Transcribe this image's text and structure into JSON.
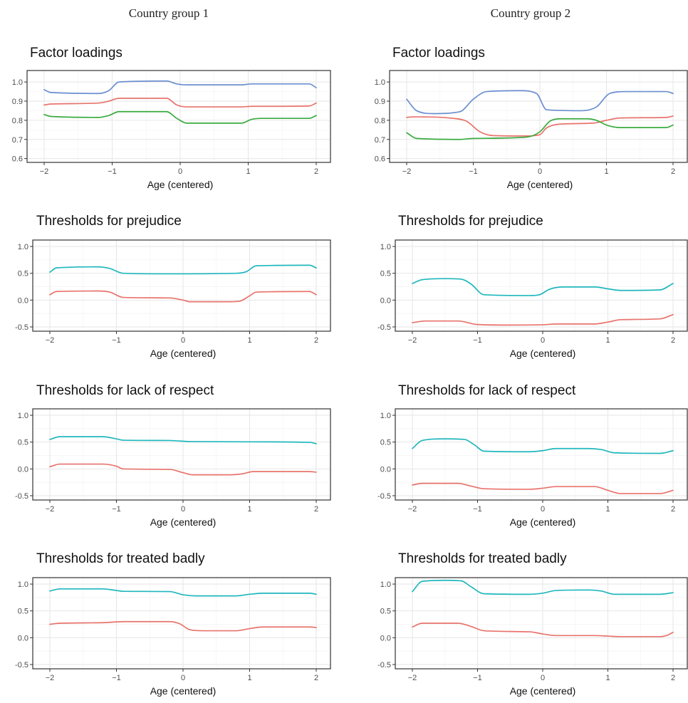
{
  "columns": [
    "Country group 1",
    "Country group 2"
  ],
  "chart_data": [
    {
      "type": "line",
      "group": "Country group 1",
      "title": "Factor loadings",
      "xlabel": "Age (centered)",
      "ylabel": "",
      "xlim": [
        -2,
        2
      ],
      "ylim": [
        0.58,
        1.06
      ],
      "xticks": [
        -2,
        -1,
        0,
        1,
        2
      ],
      "xtick_labels": [
        "−2",
        "−1",
        "0",
        "1",
        "2"
      ],
      "yticks": [
        0.6,
        0.7,
        0.8,
        0.9,
        1.0
      ],
      "ytick_labels": [
        "0.6",
        "0.7",
        "0.8",
        "0.9",
        "1.0"
      ],
      "grid": true,
      "legend": "none",
      "series": [
        {
          "color": "#6b8fd0",
          "x": [
            -2,
            -1.9,
            -1.2,
            -1.05,
            -0.9,
            -0.2,
            -0.05,
            0.1,
            0.9,
            1.05,
            1.2,
            1.9,
            2
          ],
          "y": [
            0.96,
            0.945,
            0.94,
            0.955,
            1.0,
            1.005,
            0.99,
            0.985,
            0.985,
            0.99,
            0.99,
            0.99,
            0.97
          ]
        },
        {
          "color": "#e8736c",
          "x": [
            -2,
            -1.9,
            -1.2,
            -1.05,
            -0.9,
            -0.2,
            -0.05,
            0.1,
            0.9,
            1.05,
            1.2,
            1.9,
            2
          ],
          "y": [
            0.88,
            0.885,
            0.89,
            0.9,
            0.915,
            0.915,
            0.88,
            0.87,
            0.87,
            0.873,
            0.873,
            0.875,
            0.89
          ]
        },
        {
          "color": "#3aab3f",
          "x": [
            -2,
            -1.9,
            -1.2,
            -1.05,
            -0.9,
            -0.2,
            -0.05,
            0.1,
            0.9,
            1.05,
            1.2,
            1.9,
            2
          ],
          "y": [
            0.83,
            0.82,
            0.815,
            0.825,
            0.845,
            0.845,
            0.81,
            0.785,
            0.785,
            0.805,
            0.81,
            0.81,
            0.825
          ]
        }
      ]
    },
    {
      "type": "line",
      "group": "Country group 2",
      "title": "Factor loadings",
      "xlabel": "Age (centered)",
      "ylabel": "",
      "xlim": [
        -2,
        2
      ],
      "ylim": [
        0.58,
        1.06
      ],
      "xticks": [
        -2,
        -1,
        0,
        1,
        2
      ],
      "xtick_labels": [
        "−2",
        "−1",
        "0",
        "1",
        "2"
      ],
      "yticks": [
        0.6,
        0.7,
        0.8,
        0.9,
        1.0
      ],
      "ytick_labels": [
        "0.6",
        "0.7",
        "0.8",
        "0.9",
        "1.0"
      ],
      "grid": true,
      "legend": "none",
      "series": [
        {
          "color": "#6b8fd0",
          "x": [
            -2,
            -1.85,
            -1.6,
            -1.2,
            -1.0,
            -0.8,
            -0.3,
            -0.05,
            0.1,
            0.6,
            0.85,
            1.05,
            1.3,
            1.9,
            2
          ],
          "y": [
            0.91,
            0.85,
            0.835,
            0.845,
            0.91,
            0.95,
            0.955,
            0.94,
            0.855,
            0.85,
            0.87,
            0.94,
            0.95,
            0.95,
            0.94
          ]
        },
        {
          "color": "#e8736c",
          "x": [
            -2,
            -1.9,
            -1.3,
            -1.1,
            -0.9,
            -0.7,
            -0.2,
            0.0,
            0.1,
            0.3,
            0.8,
            1.0,
            1.2,
            1.9,
            2
          ],
          "y": [
            0.815,
            0.818,
            0.81,
            0.795,
            0.74,
            0.72,
            0.718,
            0.725,
            0.76,
            0.78,
            0.785,
            0.8,
            0.812,
            0.815,
            0.822
          ]
        },
        {
          "color": "#3aab3f",
          "x": [
            -2,
            -1.85,
            -1.2,
            -1.0,
            -0.2,
            0.0,
            0.15,
            0.3,
            0.7,
            0.85,
            1.0,
            1.2,
            1.9,
            2
          ],
          "y": [
            0.735,
            0.705,
            0.7,
            0.705,
            0.712,
            0.74,
            0.795,
            0.808,
            0.808,
            0.8,
            0.775,
            0.762,
            0.762,
            0.775
          ]
        }
      ]
    },
    {
      "type": "line",
      "group": "Country group 1",
      "title": "Thresholds for prejudice",
      "xlabel": "Age (centered)",
      "ylabel": "",
      "xlim": [
        -2,
        2
      ],
      "ylim": [
        -0.58,
        1.12
      ],
      "xticks": [
        -2,
        -1,
        0,
        1,
        2
      ],
      "xtick_labels": [
        "−2",
        "−1",
        "0",
        "1",
        "2"
      ],
      "yticks": [
        -0.5,
        0.0,
        0.5,
        1.0
      ],
      "ytick_labels": [
        "-0.5",
        "0.0",
        "0.5",
        "1.0"
      ],
      "grid": true,
      "legend": "none",
      "series": [
        {
          "color": "#20b7bd",
          "x": [
            -2,
            -1.9,
            -1.3,
            -1.1,
            -0.9,
            -0.2,
            0.8,
            0.95,
            1.1,
            1.9,
            2
          ],
          "y": [
            0.52,
            0.6,
            0.62,
            0.59,
            0.5,
            0.49,
            0.5,
            0.53,
            0.64,
            0.65,
            0.6
          ]
        },
        {
          "color": "#e8736c",
          "x": [
            -2,
            -1.9,
            -1.3,
            -1.1,
            -0.9,
            -0.2,
            0.0,
            0.1,
            0.7,
            0.85,
            1.0,
            1.1,
            1.9,
            2
          ],
          "y": [
            0.1,
            0.16,
            0.17,
            0.15,
            0.05,
            0.04,
            0.0,
            -0.03,
            -0.03,
            -0.02,
            0.08,
            0.15,
            0.16,
            0.1
          ]
        }
      ]
    },
    {
      "type": "line",
      "group": "Country group 2",
      "title": "Thresholds for prejudice",
      "xlabel": "Age (centered)",
      "ylabel": "",
      "xlim": [
        -2,
        2
      ],
      "ylim": [
        -0.58,
        1.12
      ],
      "xticks": [
        -2,
        -1,
        0,
        1,
        2
      ],
      "xtick_labels": [
        "−2",
        "−1",
        "0",
        "1",
        "2"
      ],
      "yticks": [
        -0.5,
        0.0,
        0.5,
        1.0
      ],
      "ytick_labels": [
        "-0.5",
        "0.0",
        "0.5",
        "1.0"
      ],
      "grid": true,
      "legend": "none",
      "series": [
        {
          "color": "#20b7bd",
          "x": [
            -2,
            -1.85,
            -1.5,
            -1.25,
            -1.1,
            -0.9,
            -0.2,
            -0.05,
            0.1,
            0.3,
            0.8,
            1.0,
            1.2,
            1.8,
            2
          ],
          "y": [
            0.31,
            0.38,
            0.4,
            0.39,
            0.3,
            0.1,
            0.085,
            0.1,
            0.2,
            0.245,
            0.245,
            0.21,
            0.18,
            0.19,
            0.31
          ]
        },
        {
          "color": "#e8736c",
          "x": [
            -2,
            -1.8,
            -1.3,
            -1.0,
            -0.5,
            0.0,
            0.2,
            0.8,
            1.0,
            1.2,
            1.8,
            2
          ],
          "y": [
            -0.42,
            -0.39,
            -0.39,
            -0.455,
            -0.465,
            -0.46,
            -0.445,
            -0.445,
            -0.41,
            -0.365,
            -0.35,
            -0.27
          ]
        }
      ]
    },
    {
      "type": "line",
      "group": "Country group 1",
      "title": "Thresholds for lack of respect",
      "xlabel": "Age (centered)",
      "ylabel": "",
      "xlim": [
        -2,
        2
      ],
      "ylim": [
        -0.58,
        1.12
      ],
      "xticks": [
        -2,
        -1,
        0,
        1,
        2
      ],
      "xtick_labels": [
        "−2",
        "−1",
        "0",
        "1",
        "2"
      ],
      "yticks": [
        -0.5,
        0.0,
        0.5,
        1.0
      ],
      "ytick_labels": [
        "-0.5",
        "0.0",
        "0.5",
        "1.0"
      ],
      "grid": true,
      "legend": "none",
      "series": [
        {
          "color": "#20b7bd",
          "x": [
            -2,
            -1.85,
            -1.2,
            -1.0,
            -0.9,
            -0.2,
            0.1,
            1.0,
            1.9,
            2
          ],
          "y": [
            0.55,
            0.6,
            0.6,
            0.56,
            0.535,
            0.53,
            0.51,
            0.505,
            0.495,
            0.47
          ]
        },
        {
          "color": "#e8736c",
          "x": [
            -2,
            -1.85,
            -1.2,
            -1.0,
            -0.9,
            -0.2,
            0.0,
            0.15,
            0.7,
            0.9,
            1.05,
            1.9,
            2
          ],
          "y": [
            0.04,
            0.09,
            0.09,
            0.05,
            0.0,
            -0.01,
            -0.07,
            -0.11,
            -0.11,
            -0.09,
            -0.05,
            -0.05,
            -0.06
          ]
        }
      ]
    },
    {
      "type": "line",
      "group": "Country group 2",
      "title": "Thresholds for lack of respect",
      "xlabel": "Age (centered)",
      "ylabel": "",
      "xlim": [
        -2,
        2
      ],
      "ylim": [
        -0.58,
        1.12
      ],
      "xticks": [
        -2,
        -1,
        0,
        1,
        2
      ],
      "xtick_labels": [
        "−2",
        "−1",
        "0",
        "1",
        "2"
      ],
      "yticks": [
        -0.5,
        0.0,
        0.5,
        1.0
      ],
      "ytick_labels": [
        "-0.5",
        "0.0",
        "0.5",
        "1.0"
      ],
      "grid": true,
      "legend": "none",
      "series": [
        {
          "color": "#20b7bd",
          "x": [
            -2,
            -1.85,
            -1.5,
            -1.2,
            -1.05,
            -0.9,
            -0.2,
            0.0,
            0.2,
            0.7,
            0.9,
            1.1,
            1.8,
            2
          ],
          "y": [
            0.38,
            0.53,
            0.56,
            0.55,
            0.45,
            0.33,
            0.32,
            0.34,
            0.38,
            0.38,
            0.36,
            0.3,
            0.29,
            0.34
          ]
        },
        {
          "color": "#e8736c",
          "x": [
            -2,
            -1.85,
            -1.3,
            -1.1,
            -0.9,
            -0.2,
            0.0,
            0.2,
            0.8,
            1.0,
            1.2,
            1.8,
            2
          ],
          "y": [
            -0.3,
            -0.27,
            -0.27,
            -0.32,
            -0.37,
            -0.38,
            -0.36,
            -0.33,
            -0.33,
            -0.4,
            -0.46,
            -0.46,
            -0.4
          ]
        }
      ]
    },
    {
      "type": "line",
      "group": "Country group 1",
      "title": "Thresholds for treated badly",
      "xlabel": "Age (centered)",
      "ylabel": "",
      "xlim": [
        -2,
        2
      ],
      "ylim": [
        -0.58,
        1.12
      ],
      "xticks": [
        -2,
        -1,
        0,
        1,
        2
      ],
      "xtick_labels": [
        "−2",
        "−1",
        "0",
        "1",
        "2"
      ],
      "yticks": [
        -0.5,
        0.0,
        0.5,
        1.0
      ],
      "ytick_labels": [
        "-0.5",
        "0.0",
        "0.5",
        "1.0"
      ],
      "grid": true,
      "legend": "none",
      "series": [
        {
          "color": "#20b7bd",
          "x": [
            -2,
            -1.85,
            -1.2,
            -1.0,
            -0.9,
            -0.2,
            0.0,
            0.2,
            0.8,
            1.0,
            1.2,
            1.9,
            2
          ],
          "y": [
            0.87,
            0.91,
            0.91,
            0.88,
            0.865,
            0.86,
            0.8,
            0.78,
            0.78,
            0.81,
            0.83,
            0.83,
            0.81
          ]
        },
        {
          "color": "#e8736c",
          "x": [
            -2,
            -1.85,
            -1.2,
            -0.9,
            -0.2,
            -0.05,
            0.1,
            0.3,
            0.8,
            1.0,
            1.2,
            1.9,
            2
          ],
          "y": [
            0.25,
            0.27,
            0.28,
            0.3,
            0.3,
            0.26,
            0.15,
            0.13,
            0.13,
            0.17,
            0.2,
            0.2,
            0.19
          ]
        }
      ]
    },
    {
      "type": "line",
      "group": "Country group 2",
      "title": "Thresholds for treated badly",
      "xlabel": "Age (centered)",
      "ylabel": "",
      "xlim": [
        -2,
        2
      ],
      "ylim": [
        -0.58,
        1.12
      ],
      "xticks": [
        -2,
        -1,
        0,
        1,
        2
      ],
      "xtick_labels": [
        "−2",
        "−1",
        "0",
        "1",
        "2"
      ],
      "yticks": [
        -0.5,
        0.0,
        0.5,
        1.0
      ],
      "ytick_labels": [
        "-0.5",
        "0.0",
        "0.5",
        "1.0"
      ],
      "grid": true,
      "legend": "none",
      "series": [
        {
          "color": "#20b7bd",
          "x": [
            -2,
            -1.85,
            -1.5,
            -1.25,
            -1.1,
            -0.9,
            -0.2,
            0.0,
            0.2,
            0.7,
            0.9,
            1.1,
            1.8,
            2
          ],
          "y": [
            0.86,
            1.05,
            1.07,
            1.06,
            0.95,
            0.82,
            0.81,
            0.83,
            0.88,
            0.89,
            0.87,
            0.81,
            0.81,
            0.84
          ]
        },
        {
          "color": "#e8736c",
          "x": [
            -2,
            -1.85,
            -1.3,
            -1.1,
            -0.9,
            -0.2,
            0.0,
            0.2,
            0.8,
            1.0,
            1.2,
            1.8,
            1.9,
            2
          ],
          "y": [
            0.2,
            0.27,
            0.27,
            0.21,
            0.13,
            0.11,
            0.07,
            0.04,
            0.04,
            0.03,
            0.02,
            0.02,
            0.04,
            0.1
          ]
        }
      ]
    }
  ]
}
